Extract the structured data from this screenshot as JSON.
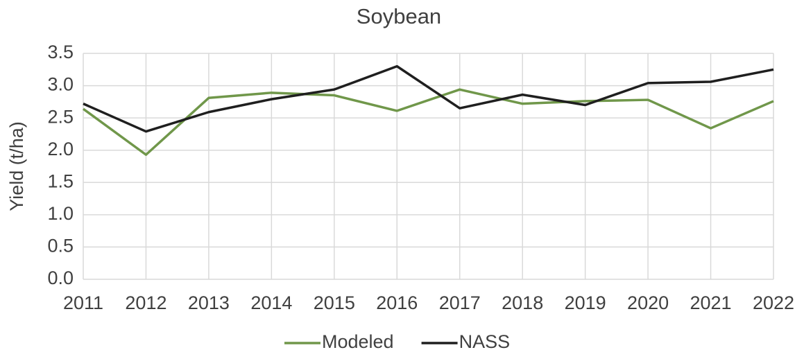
{
  "chart_data": {
    "type": "line",
    "title": "Soybean",
    "y_label": "Yield (t/ha)",
    "categories": [
      "2011",
      "2012",
      "2013",
      "2014",
      "2015",
      "2016",
      "2017",
      "2018",
      "2019",
      "2020",
      "2021",
      "2022"
    ],
    "series": [
      {
        "name": "Modeled",
        "color": "#70974a",
        "values": [
          2.64,
          1.93,
          2.81,
          2.89,
          2.85,
          2.61,
          2.94,
          2.72,
          2.76,
          2.78,
          2.34,
          2.76
        ]
      },
      {
        "name": "NASS",
        "color": "#1f1f1f",
        "values": [
          2.72,
          2.29,
          2.59,
          2.79,
          2.94,
          3.3,
          2.65,
          2.86,
          2.7,
          3.04,
          3.06,
          3.25
        ]
      }
    ],
    "ylim": [
      0,
      3.5
    ],
    "yticks": [
      {
        "value": 0,
        "label": "0.0"
      },
      0.5,
      {
        "value": 1,
        "label": "1.0"
      },
      1.5,
      {
        "value": 2,
        "label": "2.0"
      },
      2.5,
      {
        "value": 3,
        "label": "3.0"
      },
      3.5
    ],
    "grid": true,
    "legend": "bottom"
  }
}
